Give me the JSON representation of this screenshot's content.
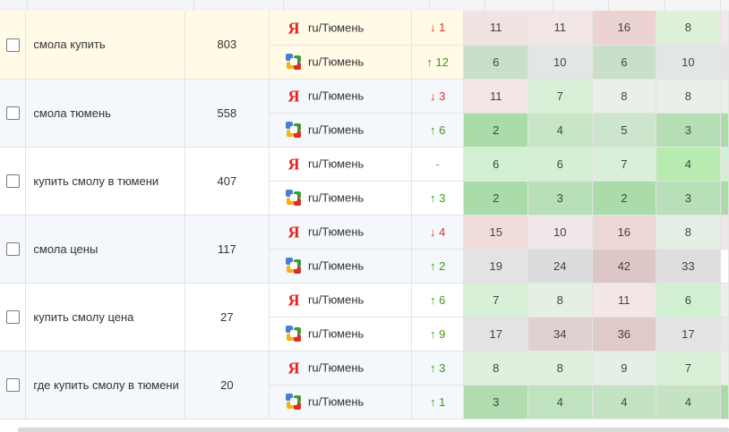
{
  "colors": {
    "hover_row_bg": "#fffbe6",
    "stripe_bg": "#f4f7fb",
    "down": "#e03131",
    "up": "#3a9a1a",
    "neutral": "#6aa84f"
  },
  "rows": [
    {
      "keyword": "смола купить",
      "volume": "803",
      "style": "hover",
      "engines": [
        {
          "engine": "yandex",
          "region": "ru/Тюмень",
          "arrow": "↓",
          "change": "1",
          "dir": "down",
          "positions": [
            "11",
            "11",
            "16",
            "8"
          ],
          "colors": [
            "#f2e3e3",
            "#f2e6e6",
            "#ecd2d2",
            "#dff0d8"
          ],
          "edge": "#f3e6e6"
        },
        {
          "engine": "google",
          "region": "ru/Тюмень",
          "arrow": "↑",
          "change": "12",
          "dir": "up",
          "positions": [
            "6",
            "10",
            "6",
            "10"
          ],
          "colors": [
            "#c9dfc9",
            "#e3e6e6",
            "#c9dfc9",
            "#e3e6e6"
          ],
          "edge": "#e3e6e6"
        }
      ]
    },
    {
      "keyword": "смола тюмень",
      "volume": "558",
      "style": "stripe",
      "engines": [
        {
          "engine": "yandex",
          "region": "ru/Тюмень",
          "arrow": "↓",
          "change": "3",
          "dir": "down",
          "positions": [
            "11",
            "7",
            "8",
            "8"
          ],
          "colors": [
            "#f2e6e6",
            "#d7f0d7",
            "#e8f0e8",
            "#e8f0e8"
          ],
          "edge": "#e8f0e8"
        },
        {
          "engine": "google",
          "region": "ru/Тюмень",
          "arrow": "↑",
          "change": "6",
          "dir": "up",
          "positions": [
            "2",
            "4",
            "5",
            "3"
          ],
          "colors": [
            "#a9dca9",
            "#c6e6c6",
            "#cde5cd",
            "#b5deb5"
          ],
          "edge": "#a9dca9"
        }
      ]
    },
    {
      "keyword": "купить смолу в тюмени",
      "volume": "407",
      "style": "plain",
      "engines": [
        {
          "engine": "yandex",
          "region": "ru/Тюмень",
          "arrow": "",
          "change": "-",
          "dir": "neutral",
          "positions": [
            "6",
            "6",
            "7",
            "4"
          ],
          "colors": [
            "#d1efd1",
            "#d5efd5",
            "#d9efd9",
            "#b7ebb0"
          ],
          "edge": "#d5efd5"
        },
        {
          "engine": "google",
          "region": "ru/Тюмень",
          "arrow": "↑",
          "change": "3",
          "dir": "up",
          "positions": [
            "2",
            "3",
            "2",
            "3"
          ],
          "colors": [
            "#a9dca9",
            "#b8e0b8",
            "#a9dca9",
            "#b8e0b8"
          ],
          "edge": "#a9dca9"
        }
      ]
    },
    {
      "keyword": "смола цены",
      "volume": "117",
      "style": "stripe",
      "engines": [
        {
          "engine": "yandex",
          "region": "ru/Тюмень",
          "arrow": "↓",
          "change": "4",
          "dir": "down",
          "positions": [
            "15",
            "10",
            "16",
            "8"
          ],
          "colors": [
            "#f1dcdc",
            "#f0e8e8",
            "#ecd6d6",
            "#e6efe6"
          ],
          "edge": "#f0e6e6"
        },
        {
          "engine": "google",
          "region": "ru/Тюмень",
          "arrow": "↑",
          "change": "2",
          "dir": "up",
          "positions": [
            "19",
            "24",
            "42",
            "33"
          ],
          "colors": [
            "#e3e3e3",
            "#dcdcdc",
            "#dcc6c6",
            "#dedede"
          ],
          "edge": "#ffffff"
        }
      ]
    },
    {
      "keyword": "купить смолу цена",
      "volume": "27",
      "style": "plain",
      "engines": [
        {
          "engine": "yandex",
          "region": "ru/Тюмень",
          "arrow": "↑",
          "change": "6",
          "dir": "up",
          "positions": [
            "7",
            "8",
            "11",
            "6"
          ],
          "colors": [
            "#d7f0d7",
            "#e3f0e3",
            "#f2e6e6",
            "#d1efd1"
          ],
          "edge": "#e6f3e6"
        },
        {
          "engine": "google",
          "region": "ru/Тюмень",
          "arrow": "↑",
          "change": "9",
          "dir": "up",
          "positions": [
            "17",
            "34",
            "36",
            "17"
          ],
          "colors": [
            "#e3e3e3",
            "#e0d1d1",
            "#dfc9c9",
            "#e3e3e3"
          ],
          "edge": "#e8e8e8"
        }
      ]
    },
    {
      "keyword": "где купить смолу в тюмени",
      "volume": "20",
      "style": "stripe",
      "engines": [
        {
          "engine": "yandex",
          "region": "ru/Тюмень",
          "arrow": "↑",
          "change": "3",
          "dir": "up",
          "positions": [
            "8",
            "8",
            "9",
            "7"
          ],
          "colors": [
            "#dff0df",
            "#dff0df",
            "#e6efe6",
            "#d7f0d7"
          ],
          "edge": "#e6f3e6"
        },
        {
          "engine": "google",
          "region": "ru/Тюмень",
          "arrow": "↑",
          "change": "1",
          "dir": "up",
          "positions": [
            "3",
            "4",
            "4",
            "4"
          ],
          "colors": [
            "#b0dcb0",
            "#bfe2bf",
            "#c3e3c3",
            "#c3e3c3"
          ],
          "edge": "#a9dca9"
        }
      ]
    }
  ]
}
